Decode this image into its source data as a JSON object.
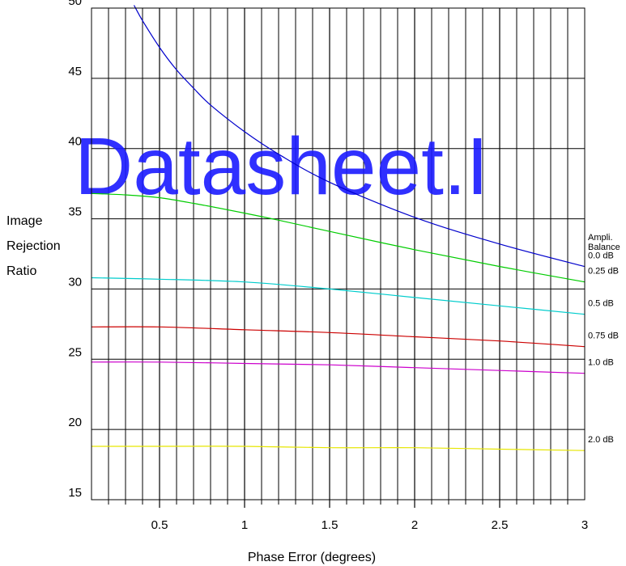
{
  "watermark": "Datasheet.I",
  "chart_data": {
    "type": "line",
    "xlabel": "Phase Error (degrees)",
    "ylabel_lines": [
      "Image",
      "Rejection",
      "Ratio"
    ],
    "legend_title_lines": [
      "Ampli.",
      "Balance"
    ],
    "xlim": [
      0.1,
      3.0
    ],
    "ylim": [
      15,
      50
    ],
    "xticks": [
      0.5,
      1,
      1.5,
      2,
      2.5,
      3
    ],
    "xtick_labels": [
      "0.5",
      "1",
      "1.5",
      "2",
      "2.5",
      "3"
    ],
    "yticks": [
      15,
      20,
      25,
      30,
      35,
      40,
      45,
      50
    ],
    "ytick_labels": [
      "15",
      "20",
      "25",
      "30",
      "35",
      "40",
      "45",
      "50"
    ],
    "x_minor_step": 0.1,
    "grid": true,
    "series": [
      {
        "name": "0.0 dB",
        "color": "#0000cc",
        "x": [
          0.35,
          0.4,
          0.5,
          0.6,
          0.7,
          0.8,
          1.0,
          1.2,
          1.5,
          2.0,
          2.5,
          3.0
        ],
        "y": [
          50.2,
          49.1,
          47.2,
          45.6,
          44.3,
          43.1,
          41.2,
          39.6,
          37.6,
          35.1,
          33.2,
          31.6
        ]
      },
      {
        "name": "0.25 dB",
        "color": "#00cc00",
        "x": [
          0.1,
          0.3,
          0.5,
          0.7,
          1.0,
          1.2,
          1.5,
          2.0,
          2.5,
          3.0
        ],
        "y": [
          36.8,
          36.7,
          36.5,
          36.1,
          35.4,
          34.9,
          34.1,
          32.8,
          31.6,
          30.5
        ]
      },
      {
        "name": "0.5 dB",
        "color": "#00cccc",
        "x": [
          0.1,
          0.5,
          1.0,
          1.5,
          2.0,
          2.5,
          3.0
        ],
        "y": [
          30.8,
          30.7,
          30.5,
          30.0,
          29.4,
          28.8,
          28.2
        ]
      },
      {
        "name": "0.75 dB",
        "color": "#cc0000",
        "x": [
          0.1,
          0.5,
          1.0,
          1.5,
          2.0,
          2.5,
          3.0
        ],
        "y": [
          27.3,
          27.3,
          27.1,
          26.9,
          26.6,
          26.3,
          25.9
        ]
      },
      {
        "name": "1.0 dB",
        "color": "#cc00cc",
        "x": [
          0.1,
          0.5,
          1.0,
          1.5,
          2.0,
          2.5,
          3.0
        ],
        "y": [
          24.8,
          24.8,
          24.7,
          24.6,
          24.4,
          24.2,
          24.0
        ]
      },
      {
        "name": "2.0 dB",
        "color": "#e6e600",
        "x": [
          0.1,
          0.5,
          1.0,
          1.5,
          2.0,
          2.5,
          3.0
        ],
        "y": [
          18.8,
          18.8,
          18.8,
          18.7,
          18.7,
          18.6,
          18.5
        ]
      }
    ]
  }
}
